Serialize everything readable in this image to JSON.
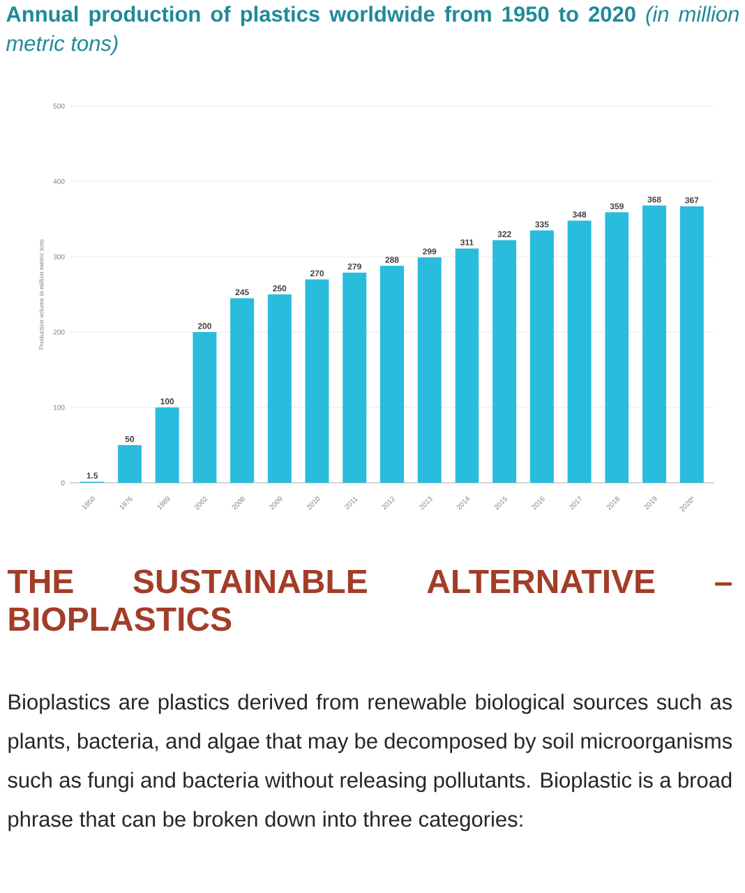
{
  "chart_data": {
    "type": "bar",
    "title": "Annual production of plastics worldwide from 1950 to 2020",
    "subtitle": "(in million metric tons)",
    "ylabel": "Production volume in million metric tons",
    "categories": [
      "1950",
      "1976",
      "1989",
      "2002",
      "2008",
      "2009",
      "2010",
      "2011",
      "2012",
      "2013",
      "2014",
      "2015",
      "2016",
      "2017",
      "2018",
      "2019",
      "2020*"
    ],
    "values": [
      1.5,
      50,
      100,
      200,
      245,
      250,
      270,
      279,
      288,
      299,
      311,
      322,
      335,
      348,
      359,
      368,
      367
    ],
    "color": "#29bcdc",
    "ylim": [
      0,
      500
    ],
    "yticks": [
      0,
      100,
      200,
      300,
      400,
      500
    ],
    "grid": "y",
    "data_labels": true,
    "annotations": [
      "THE SUSTAINABLE ALTERNATIVE – BIOPLASTICS",
      "Bioplastics are plastics derived from renewable biological sources such as plants, bacteria, and algae that may be decomposed by soil microorganisms such as fungi and bacteria without releasing pollutants. Bioplastic is a broad phrase that can be broken down into three categories:"
    ]
  }
}
